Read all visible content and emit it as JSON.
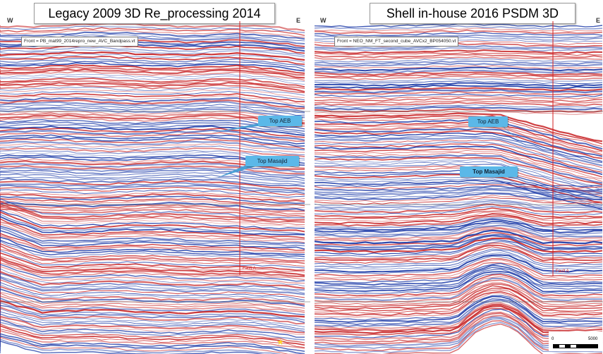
{
  "left": {
    "title": "Legacy 2009 3D Re_processing 2014",
    "west": "W",
    "east": "E",
    "front_label": "Front = PB_mat99_2014repro_new_AVC_Bandpass.vt",
    "horizon_aeb": "Top  AEB",
    "horizon_masajid": "Top Masajid",
    "well_label": "Fault A"
  },
  "right": {
    "title": "Shell in-house 2016 PSDM 3D",
    "west": "W",
    "east": "E",
    "front_label": "Front = NEO_NM_FT_second_cube_AVCx2_BP054050.vt",
    "horizon_aeb": "Top  AEB",
    "horizon_masajid": "Top Masajid",
    "well_label": "Fault A",
    "scale_zero": "0",
    "scale_end": "5000"
  },
  "colors": {
    "blue": "#1e3ca8",
    "red": "#c8282a",
    "tag": "#5bb8e8",
    "pointer": "#4a9fd4"
  }
}
